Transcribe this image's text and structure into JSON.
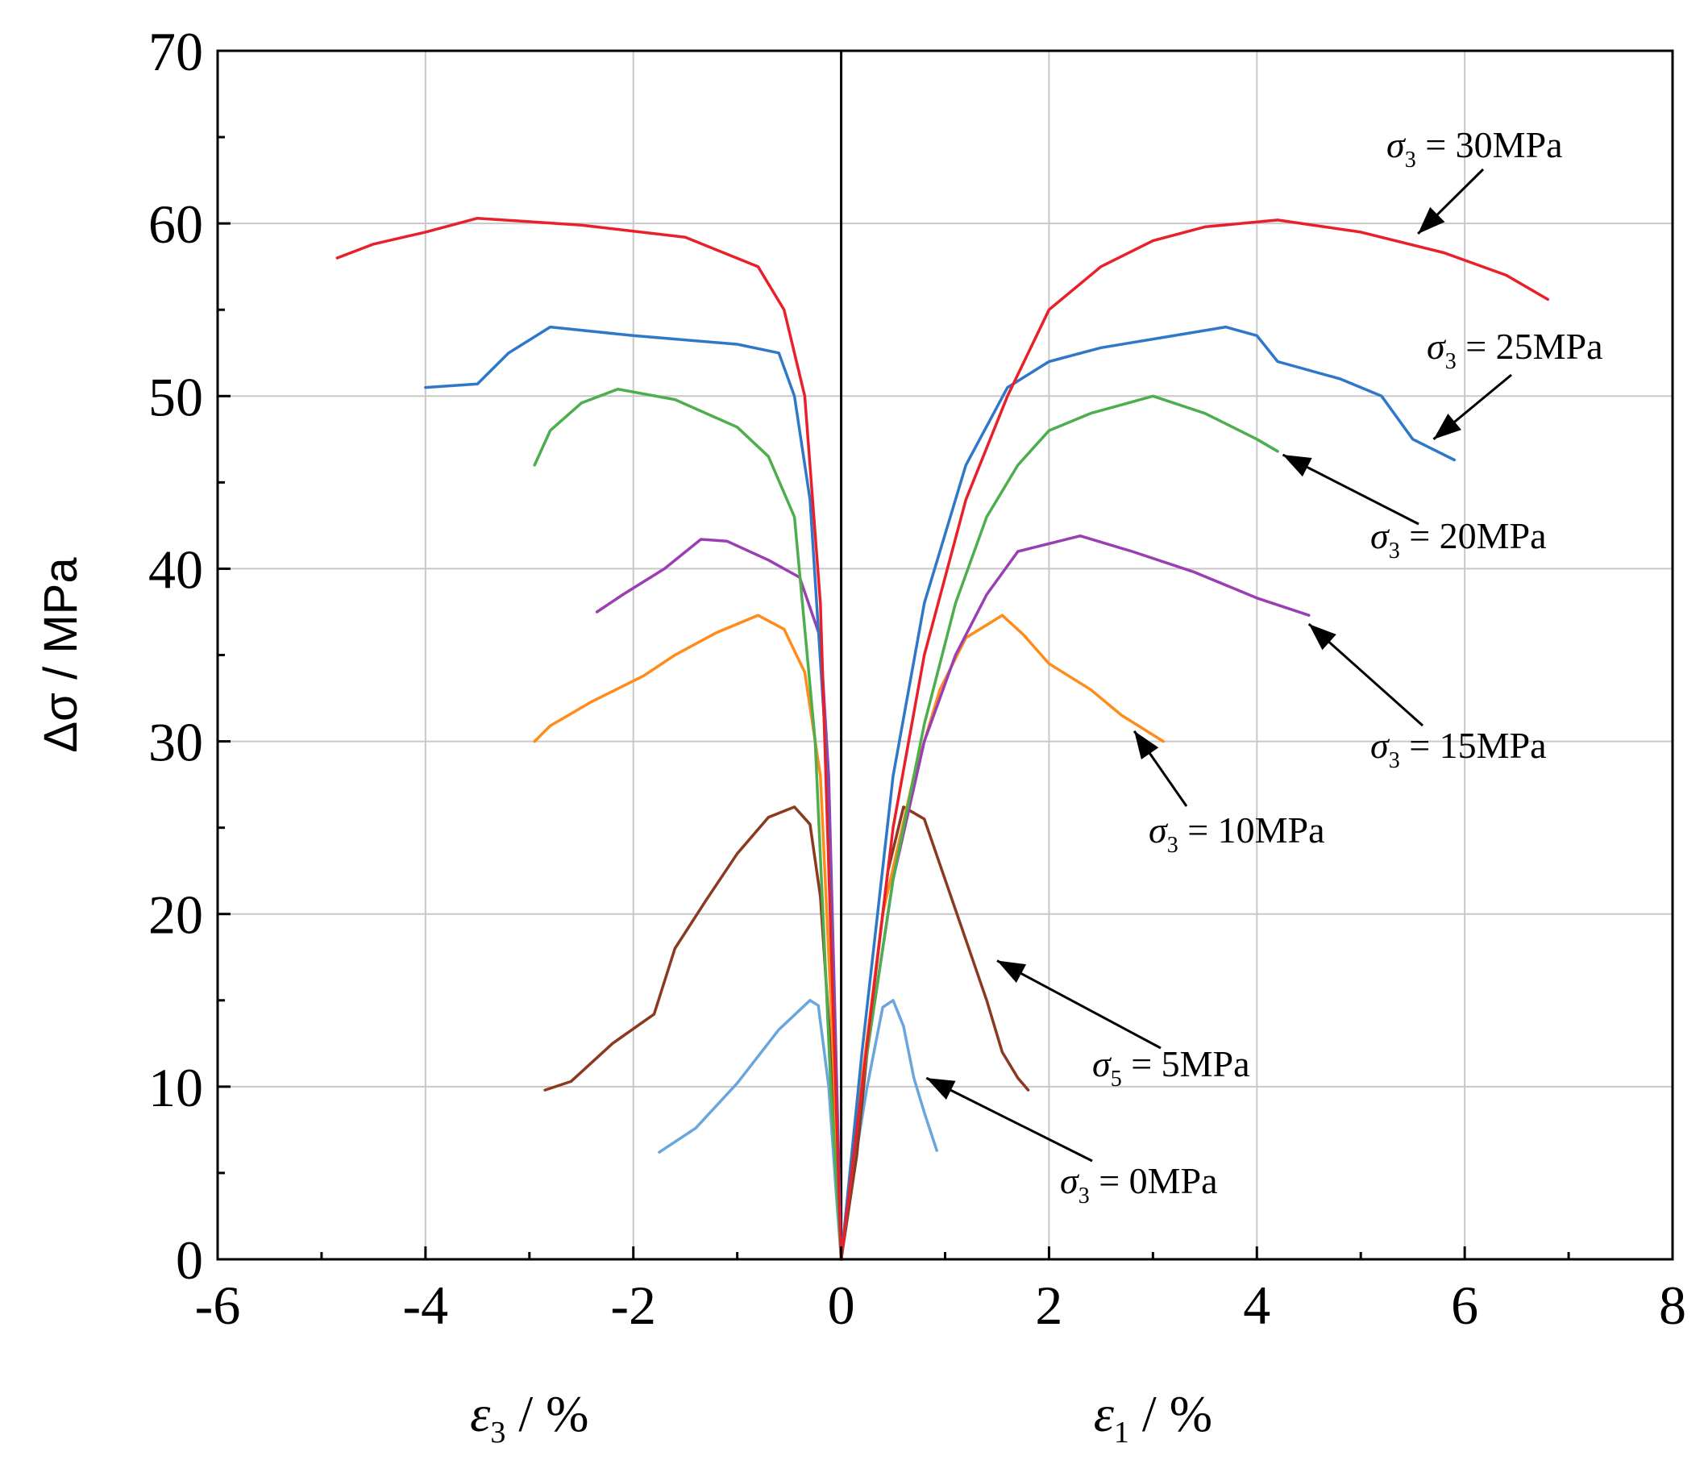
{
  "chart_data": {
    "type": "line",
    "xlim": [
      -6,
      8
    ],
    "ylim": [
      0,
      70
    ],
    "x_ticks": [
      "-6",
      "-4",
      "-2",
      "0",
      "2",
      "4",
      "6",
      "8"
    ],
    "y_ticks": [
      "0",
      "10",
      "20",
      "30",
      "40",
      "50",
      "60",
      "70"
    ],
    "ylabel": "Δσ / MPa",
    "xlabel_left": {
      "symbol": "ε",
      "sub": "3",
      "unit": " / %"
    },
    "xlabel_right": {
      "symbol": "ε",
      "sub": "1",
      "unit": " / %"
    },
    "grid": true,
    "series": [
      {
        "color": "#6aa6dc",
        "label": {
          "symbol": "σ",
          "sub": "3",
          "rest": " = 0MPa"
        },
        "left": [
          [
            -1.75,
            6.2
          ],
          [
            -1.4,
            7.6
          ],
          [
            -1.0,
            10.2
          ],
          [
            -0.6,
            13.3
          ],
          [
            -0.3,
            15.0
          ],
          [
            -0.22,
            14.7
          ],
          [
            -0.12,
            10.0
          ],
          [
            -0.05,
            4.0
          ],
          [
            0,
            0
          ]
        ],
        "right": [
          [
            0,
            0
          ],
          [
            0.1,
            4.5
          ],
          [
            0.25,
            10.0
          ],
          [
            0.4,
            14.6
          ],
          [
            0.5,
            15.0
          ],
          [
            0.6,
            13.5
          ],
          [
            0.7,
            10.5
          ],
          [
            0.8,
            8.5
          ],
          [
            0.92,
            6.3
          ]
        ]
      },
      {
        "color": "#8b3a20",
        "label": {
          "symbol": "σ",
          "sub": "5",
          "rest": " = 5MPa"
        },
        "left": [
          [
            -2.85,
            9.8
          ],
          [
            -2.6,
            10.3
          ],
          [
            -2.2,
            12.5
          ],
          [
            -1.8,
            14.2
          ],
          [
            -1.6,
            18.0
          ],
          [
            -1.3,
            20.8
          ],
          [
            -1.0,
            23.5
          ],
          [
            -0.7,
            25.6
          ],
          [
            -0.45,
            26.2
          ],
          [
            -0.3,
            25.2
          ],
          [
            -0.2,
            21.0
          ],
          [
            -0.1,
            12.0
          ],
          [
            -0.03,
            4.0
          ],
          [
            0,
            0
          ]
        ],
        "right": [
          [
            0,
            0
          ],
          [
            0.15,
            6.0
          ],
          [
            0.3,
            15.0
          ],
          [
            0.45,
            22.5
          ],
          [
            0.6,
            26.2
          ],
          [
            0.8,
            25.5
          ],
          [
            1.0,
            22.0
          ],
          [
            1.2,
            18.5
          ],
          [
            1.4,
            15.0
          ],
          [
            1.55,
            12.0
          ],
          [
            1.7,
            10.5
          ],
          [
            1.8,
            9.8
          ]
        ]
      },
      {
        "color": "#ff8c1a",
        "label": {
          "symbol": "σ",
          "sub": "3",
          "rest": " = 10MPa"
        },
        "left": [
          [
            -2.95,
            30.0
          ],
          [
            -2.8,
            30.9
          ],
          [
            -2.4,
            32.3
          ],
          [
            -1.9,
            33.8
          ],
          [
            -1.6,
            35.0
          ],
          [
            -1.2,
            36.3
          ],
          [
            -0.8,
            37.3
          ],
          [
            -0.55,
            36.5
          ],
          [
            -0.35,
            34.0
          ],
          [
            -0.2,
            28.0
          ],
          [
            -0.1,
            15.0
          ],
          [
            -0.03,
            5.0
          ],
          [
            0,
            0
          ]
        ],
        "right": [
          [
            0,
            0
          ],
          [
            0.15,
            8.0
          ],
          [
            0.4,
            20.0
          ],
          [
            0.7,
            28.0
          ],
          [
            0.95,
            33.0
          ],
          [
            1.2,
            36.0
          ],
          [
            1.55,
            37.3
          ],
          [
            1.75,
            36.2
          ],
          [
            2.0,
            34.5
          ],
          [
            2.4,
            33.0
          ],
          [
            2.7,
            31.5
          ],
          [
            3.1,
            30.0
          ]
        ]
      },
      {
        "color": "#9a3fb3",
        "label": {
          "symbol": "σ",
          "sub": "3",
          "rest": " = 15MPa"
        },
        "left": [
          [
            -2.35,
            37.5
          ],
          [
            -2.1,
            38.5
          ],
          [
            -1.7,
            40.0
          ],
          [
            -1.35,
            41.7
          ],
          [
            -1.1,
            41.6
          ],
          [
            -0.7,
            40.5
          ],
          [
            -0.4,
            39.5
          ],
          [
            -0.2,
            36.0
          ],
          [
            -0.12,
            28.0
          ],
          [
            -0.05,
            12.0
          ],
          [
            0,
            0
          ]
        ],
        "right": [
          [
            0,
            0
          ],
          [
            0.2,
            10.0
          ],
          [
            0.5,
            22.0
          ],
          [
            0.8,
            30.0
          ],
          [
            1.1,
            35.0
          ],
          [
            1.4,
            38.5
          ],
          [
            1.7,
            41.0
          ],
          [
            2.3,
            41.9
          ],
          [
            2.8,
            41.0
          ],
          [
            3.4,
            39.8
          ],
          [
            4.0,
            38.3
          ],
          [
            4.5,
            37.3
          ]
        ]
      },
      {
        "color": "#4cae4c",
        "label": {
          "symbol": "σ",
          "sub": "3",
          "rest": " = 20MPa"
        },
        "left": [
          [
            -2.95,
            46.0
          ],
          [
            -2.8,
            48.0
          ],
          [
            -2.5,
            49.6
          ],
          [
            -2.15,
            50.4
          ],
          [
            -1.6,
            49.8
          ],
          [
            -1.0,
            48.2
          ],
          [
            -0.7,
            46.5
          ],
          [
            -0.45,
            43.0
          ],
          [
            -0.25,
            30.0
          ],
          [
            -0.1,
            10.0
          ],
          [
            0,
            0
          ]
        ],
        "right": [
          [
            0,
            0
          ],
          [
            0.2,
            10.0
          ],
          [
            0.5,
            22.0
          ],
          [
            0.8,
            31.0
          ],
          [
            1.1,
            38.0
          ],
          [
            1.4,
            43.0
          ],
          [
            1.7,
            46.0
          ],
          [
            2.0,
            48.0
          ],
          [
            2.4,
            49.0
          ],
          [
            3.0,
            50.0
          ],
          [
            3.5,
            49.0
          ],
          [
            4.0,
            47.5
          ],
          [
            4.2,
            46.8
          ]
        ]
      },
      {
        "color": "#2f78c9",
        "label": {
          "symbol": "σ",
          "sub": "3",
          "rest": " = 25MPa"
        },
        "left": [
          [
            -4.0,
            50.5
          ],
          [
            -3.5,
            50.7
          ],
          [
            -3.2,
            52.5
          ],
          [
            -2.8,
            54.0
          ],
          [
            -2.0,
            53.5
          ],
          [
            -1.0,
            53.0
          ],
          [
            -0.6,
            52.5
          ],
          [
            -0.45,
            50.0
          ],
          [
            -0.3,
            44.0
          ],
          [
            -0.15,
            30.0
          ],
          [
            -0.05,
            10.0
          ],
          [
            0,
            0
          ]
        ],
        "right": [
          [
            0,
            0
          ],
          [
            0.2,
            12.0
          ],
          [
            0.5,
            28.0
          ],
          [
            0.8,
            38.0
          ],
          [
            1.2,
            46.0
          ],
          [
            1.6,
            50.5
          ],
          [
            2.0,
            52.0
          ],
          [
            2.5,
            52.8
          ],
          [
            3.0,
            53.3
          ],
          [
            3.7,
            54.0
          ],
          [
            4.0,
            53.5
          ],
          [
            4.2,
            52.0
          ],
          [
            4.8,
            51.0
          ],
          [
            5.2,
            50.0
          ],
          [
            5.5,
            47.5
          ],
          [
            5.9,
            46.3
          ]
        ]
      },
      {
        "color": "#e8202a",
        "label": {
          "symbol": "σ",
          "sub": "3",
          "rest": " = 30MPa"
        },
        "left": [
          [
            -4.85,
            58.0
          ],
          [
            -4.5,
            58.8
          ],
          [
            -4.0,
            59.5
          ],
          [
            -3.5,
            60.3
          ],
          [
            -2.5,
            59.9
          ],
          [
            -1.5,
            59.2
          ],
          [
            -0.8,
            57.5
          ],
          [
            -0.55,
            55.0
          ],
          [
            -0.35,
            50.0
          ],
          [
            -0.2,
            38.0
          ],
          [
            -0.08,
            15.0
          ],
          [
            0,
            0
          ]
        ],
        "right": [
          [
            0,
            0
          ],
          [
            0.2,
            10.0
          ],
          [
            0.5,
            25.0
          ],
          [
            0.8,
            35.0
          ],
          [
            1.2,
            44.0
          ],
          [
            1.6,
            50.0
          ],
          [
            2.0,
            55.0
          ],
          [
            2.5,
            57.5
          ],
          [
            3.0,
            59.0
          ],
          [
            3.5,
            59.8
          ],
          [
            4.2,
            60.2
          ],
          [
            5.0,
            59.5
          ],
          [
            5.8,
            58.3
          ],
          [
            6.4,
            57.0
          ],
          [
            6.8,
            55.6
          ]
        ]
      }
    ]
  }
}
